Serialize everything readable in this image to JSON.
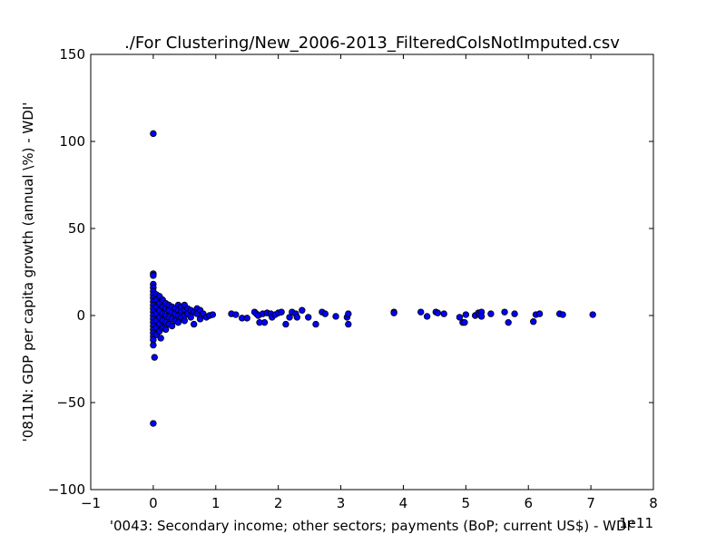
{
  "chart_data": {
    "type": "scatter",
    "title": "./For Clustering/New_2006-2013_FilteredColsNotImputed.csv",
    "xlabel": "'0043: Secondary income; other sectors; payments  (BoP; current US$) - WDI'",
    "ylabel": "'0811N: GDP per capita growth  (annual \\%) - WDI'",
    "x_offset_label": "1e11",
    "xlim": [
      -1,
      8
    ],
    "ylim": [
      -100,
      150
    ],
    "x_ticks": [
      -1,
      0,
      1,
      2,
      3,
      4,
      5,
      6,
      7,
      8
    ],
    "x_tick_labels": [
      "−1",
      "0",
      "1",
      "2",
      "3",
      "4",
      "5",
      "6",
      "7",
      "8"
    ],
    "y_ticks": [
      -100,
      -50,
      0,
      50,
      100,
      150
    ],
    "y_tick_labels": [
      "−100",
      "−50",
      "0",
      "50",
      "100",
      "150"
    ],
    "grid": false,
    "marker_color": "#0000ff",
    "marker_edge_color": "#000000",
    "points": [
      [
        0.0,
        104.5
      ],
      [
        0.0,
        24.0
      ],
      [
        0.0,
        23.0
      ],
      [
        0.0,
        18.0
      ],
      [
        0.0,
        16.0
      ],
      [
        0.0,
        14.0
      ],
      [
        0.0,
        12.0
      ],
      [
        0.0,
        10.0
      ],
      [
        0.0,
        8.0
      ],
      [
        0.0,
        6.0
      ],
      [
        0.0,
        4.0
      ],
      [
        0.0,
        2.0
      ],
      [
        0.0,
        0.0
      ],
      [
        0.0,
        -2.0
      ],
      [
        0.0,
        -4.0
      ],
      [
        0.0,
        -6.0
      ],
      [
        0.0,
        -8.0
      ],
      [
        0.0,
        -10.0
      ],
      [
        0.0,
        -12.0
      ],
      [
        0.0,
        -14.0
      ],
      [
        0.0,
        -17.0
      ],
      [
        0.02,
        -24.0
      ],
      [
        0.0,
        -62.0
      ],
      [
        0.05,
        12.0
      ],
      [
        0.05,
        9.0
      ],
      [
        0.05,
        5.0
      ],
      [
        0.05,
        1.0
      ],
      [
        0.05,
        -3.0
      ],
      [
        0.05,
        -7.0
      ],
      [
        0.05,
        -11.0
      ],
      [
        0.1,
        11.0
      ],
      [
        0.1,
        7.0
      ],
      [
        0.1,
        3.0
      ],
      [
        0.1,
        -1.0
      ],
      [
        0.1,
        -5.0
      ],
      [
        0.1,
        -9.0
      ],
      [
        0.12,
        -13.0
      ],
      [
        0.15,
        9.0
      ],
      [
        0.15,
        5.0
      ],
      [
        0.15,
        1.0
      ],
      [
        0.15,
        -3.0
      ],
      [
        0.15,
        -7.0
      ],
      [
        0.2,
        7.0
      ],
      [
        0.2,
        4.0
      ],
      [
        0.2,
        0.0
      ],
      [
        0.2,
        -4.0
      ],
      [
        0.2,
        -8.0
      ],
      [
        0.25,
        6.0
      ],
      [
        0.25,
        3.0
      ],
      [
        0.25,
        -1.0
      ],
      [
        0.25,
        -5.0
      ],
      [
        0.3,
        5.0
      ],
      [
        0.3,
        2.0
      ],
      [
        0.3,
        -2.0
      ],
      [
        0.3,
        -6.0
      ],
      [
        0.35,
        4.0
      ],
      [
        0.35,
        1.0
      ],
      [
        0.35,
        -3.0
      ],
      [
        0.4,
        6.0
      ],
      [
        0.4,
        3.0
      ],
      [
        0.4,
        0.0
      ],
      [
        0.4,
        -4.0
      ],
      [
        0.45,
        5.0
      ],
      [
        0.45,
        2.0
      ],
      [
        0.45,
        -1.0
      ],
      [
        0.5,
        6.0
      ],
      [
        0.5,
        3.0
      ],
      [
        0.5,
        0.0
      ],
      [
        0.5,
        -3.0
      ],
      [
        0.55,
        4.0
      ],
      [
        0.55,
        1.0
      ],
      [
        0.6,
        3.0
      ],
      [
        0.6,
        -1.0
      ],
      [
        0.65,
        2.0
      ],
      [
        0.65,
        -5.0
      ],
      [
        0.7,
        4.0
      ],
      [
        0.7,
        1.0
      ],
      [
        0.75,
        3.0
      ],
      [
        0.75,
        -2.0
      ],
      [
        0.8,
        1.0
      ],
      [
        0.85,
        -1.0
      ],
      [
        0.9,
        0.0
      ],
      [
        0.95,
        0.5
      ],
      [
        1.25,
        1.0
      ],
      [
        1.32,
        0.5
      ],
      [
        1.42,
        -1.5
      ],
      [
        1.5,
        -1.5
      ],
      [
        1.62,
        2.0
      ],
      [
        1.65,
        1.0
      ],
      [
        1.68,
        0.0
      ],
      [
        1.7,
        -4.0
      ],
      [
        1.75,
        1.0
      ],
      [
        1.78,
        -4.0
      ],
      [
        1.82,
        1.5
      ],
      [
        1.88,
        1.0
      ],
      [
        1.9,
        -1.0
      ],
      [
        1.95,
        0.5
      ],
      [
        2.0,
        1.5
      ],
      [
        2.05,
        2.0
      ],
      [
        2.12,
        -5.0
      ],
      [
        2.18,
        -1.0
      ],
      [
        2.22,
        2.0
      ],
      [
        2.28,
        1.0
      ],
      [
        2.3,
        -1.0
      ],
      [
        2.38,
        3.0
      ],
      [
        2.48,
        -1.0
      ],
      [
        2.6,
        -5.0
      ],
      [
        2.7,
        2.0
      ],
      [
        2.75,
        1.0
      ],
      [
        2.92,
        -0.5
      ],
      [
        3.1,
        -1.0
      ],
      [
        3.12,
        1.0
      ],
      [
        3.12,
        -5.0
      ],
      [
        3.85,
        2.0
      ],
      [
        3.85,
        1.5
      ],
      [
        4.28,
        2.0
      ],
      [
        4.38,
        -0.5
      ],
      [
        4.52,
        2.0
      ],
      [
        4.55,
        1.5
      ],
      [
        4.65,
        1.0
      ],
      [
        4.9,
        -1.0
      ],
      [
        4.95,
        -4.0
      ],
      [
        4.98,
        -4.0
      ],
      [
        5.0,
        0.5
      ],
      [
        5.15,
        0.0
      ],
      [
        5.2,
        1.5
      ],
      [
        5.22,
        0.5
      ],
      [
        5.25,
        2.0
      ],
      [
        5.25,
        -0.5
      ],
      [
        5.4,
        1.0
      ],
      [
        5.62,
        2.0
      ],
      [
        5.68,
        -4.0
      ],
      [
        5.78,
        1.0
      ],
      [
        6.08,
        -3.5
      ],
      [
        6.12,
        0.5
      ],
      [
        6.18,
        1.0
      ],
      [
        6.5,
        1.0
      ],
      [
        6.55,
        0.5
      ],
      [
        7.03,
        0.5
      ]
    ]
  }
}
